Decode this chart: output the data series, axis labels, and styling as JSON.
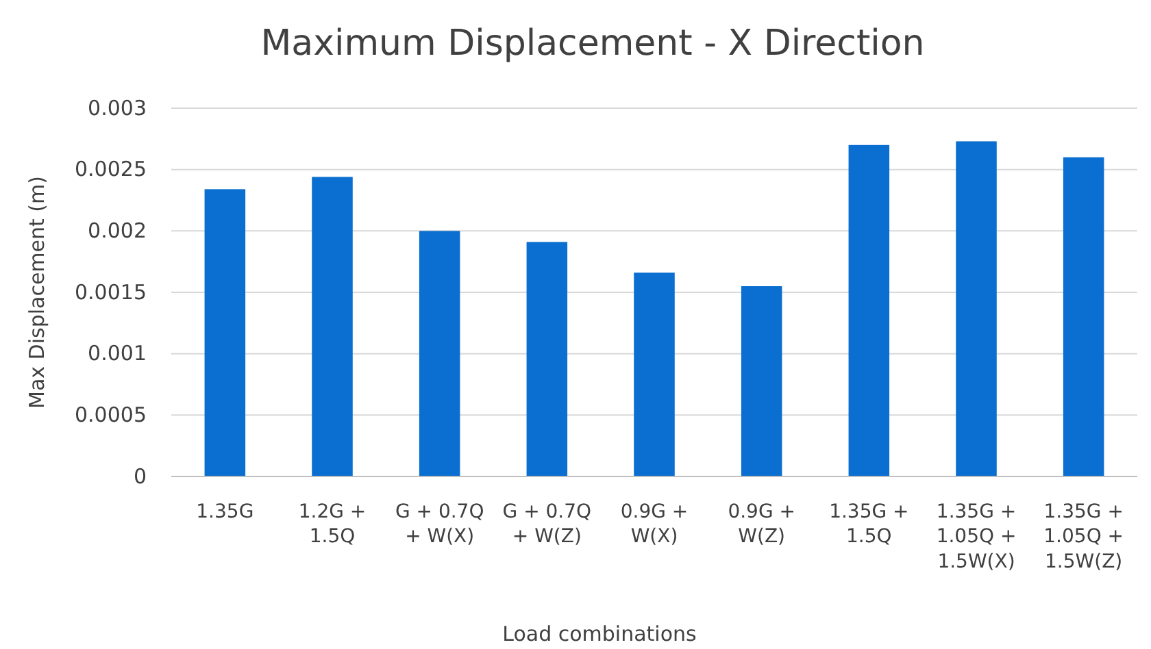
{
  "chart_data": {
    "type": "bar",
    "title": "Maximum Displacement - X Direction",
    "xlabel": "Load combinations",
    "ylabel": "Max Displacement (m)",
    "categories": [
      "1.35G",
      "1.2G + 1.5Q",
      "G + 0.7Q + W(X)",
      "G + 0.7Q + W(Z)",
      "0.9G + W(X)",
      "0.9G + W(Z)",
      "1.35G + 1.5Q",
      "1.35G + 1.05Q + 1.5W(X)",
      "1.35G + 1.05Q + 1.5W(Z)"
    ],
    "values": [
      0.00234,
      0.00244,
      0.002,
      0.00191,
      0.00166,
      0.00155,
      0.0027,
      0.00273,
      0.0026
    ],
    "color": "#0a6fd0",
    "ylim": [
      0,
      0.003
    ],
    "yticks": [
      0,
      0.0005,
      0.001,
      0.0015,
      0.002,
      0.0025,
      0.003
    ],
    "grid": "y"
  }
}
